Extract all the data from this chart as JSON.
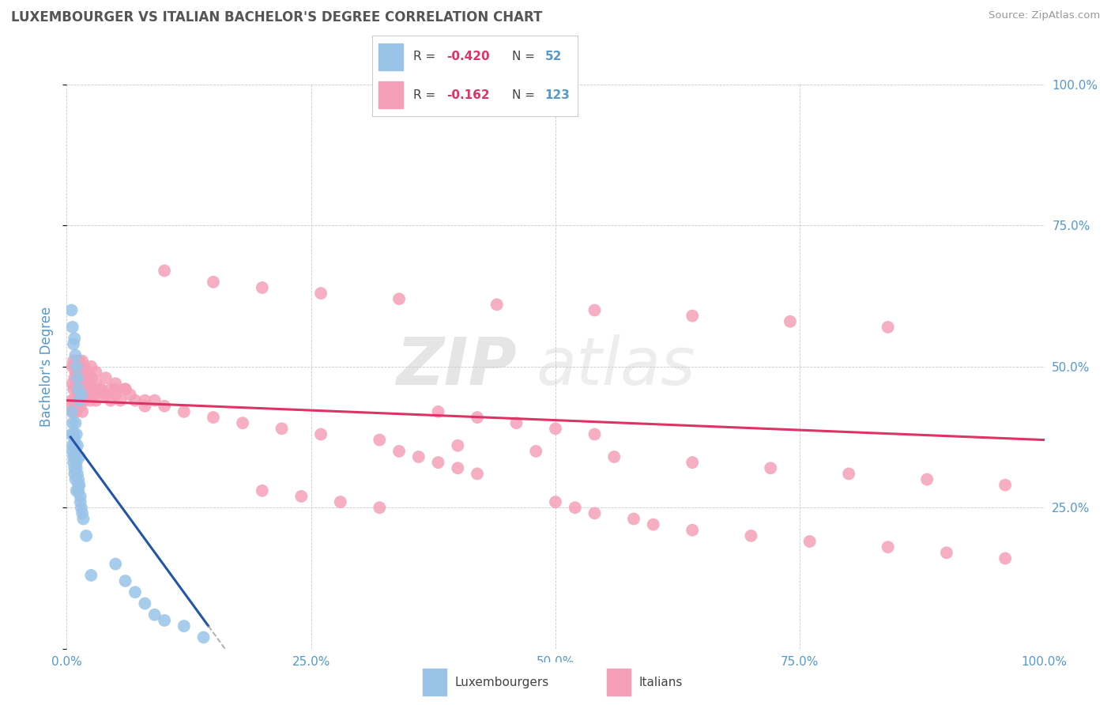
{
  "title": "LUXEMBOURGER VS ITALIAN BACHELOR'S DEGREE CORRELATION CHART",
  "source": "Source: ZipAtlas.com",
  "ylabel": "Bachelor's Degree",
  "xlim": [
    0,
    1.0
  ],
  "ylim": [
    0,
    1.0
  ],
  "xtick_labels": [
    "0.0%",
    "25.0%",
    "50.0%",
    "75.0%",
    "100.0%"
  ],
  "xticks": [
    0.0,
    0.25,
    0.5,
    0.75,
    1.0
  ],
  "yticks_right": [
    0.25,
    0.5,
    0.75,
    1.0
  ],
  "ytick_labels_right": [
    "25.0%",
    "50.0%",
    "75.0%",
    "100.0%"
  ],
  "lux_color": "#99c4e8",
  "ita_color": "#f5a0b8",
  "lux_line_color": "#2255aa",
  "ita_line_color": "#dd3366",
  "axis_color": "#5599cc",
  "grid_color": "#bbbbbb",
  "background_color": "#ffffff",
  "lux_x": [
    0.005,
    0.006,
    0.007,
    0.008,
    0.006,
    0.007,
    0.008,
    0.009,
    0.01,
    0.008,
    0.009,
    0.01,
    0.011,
    0.012,
    0.009,
    0.01,
    0.011,
    0.013,
    0.012,
    0.014,
    0.016,
    0.014,
    0.013,
    0.015,
    0.017,
    0.005,
    0.006,
    0.007,
    0.008,
    0.009,
    0.01,
    0.012,
    0.05,
    0.06,
    0.07,
    0.08,
    0.09,
    0.1,
    0.12,
    0.14,
    0.005,
    0.006,
    0.007,
    0.015,
    0.02,
    0.025,
    0.008,
    0.009,
    0.01,
    0.011,
    0.012,
    0.013
  ],
  "lux_y": [
    0.38,
    0.36,
    0.34,
    0.32,
    0.35,
    0.33,
    0.31,
    0.3,
    0.28,
    0.37,
    0.35,
    0.33,
    0.31,
    0.29,
    0.4,
    0.38,
    0.36,
    0.34,
    0.28,
    0.26,
    0.24,
    0.27,
    0.29,
    0.25,
    0.23,
    0.42,
    0.4,
    0.38,
    0.36,
    0.34,
    0.32,
    0.3,
    0.15,
    0.12,
    0.1,
    0.08,
    0.06,
    0.05,
    0.04,
    0.02,
    0.6,
    0.57,
    0.54,
    0.45,
    0.2,
    0.13,
    0.55,
    0.52,
    0.5,
    0.48,
    0.46,
    0.44
  ],
  "ita_x": [
    0.005,
    0.006,
    0.007,
    0.008,
    0.009,
    0.01,
    0.012,
    0.014,
    0.016,
    0.018,
    0.02,
    0.022,
    0.024,
    0.026,
    0.028,
    0.03,
    0.035,
    0.04,
    0.045,
    0.05,
    0.006,
    0.007,
    0.008,
    0.009,
    0.01,
    0.011,
    0.012,
    0.013,
    0.014,
    0.015,
    0.016,
    0.017,
    0.018,
    0.019,
    0.02,
    0.022,
    0.024,
    0.026,
    0.028,
    0.03,
    0.035,
    0.04,
    0.045,
    0.05,
    0.055,
    0.06,
    0.065,
    0.07,
    0.08,
    0.09,
    0.006,
    0.007,
    0.008,
    0.009,
    0.01,
    0.011,
    0.012,
    0.013,
    0.014,
    0.015,
    0.016,
    0.018,
    0.02,
    0.025,
    0.03,
    0.04,
    0.05,
    0.06,
    0.08,
    0.1,
    0.12,
    0.15,
    0.18,
    0.22,
    0.26,
    0.32,
    0.4,
    0.48,
    0.56,
    0.64,
    0.72,
    0.8,
    0.88,
    0.96,
    0.1,
    0.15,
    0.2,
    0.26,
    0.34,
    0.44,
    0.54,
    0.64,
    0.74,
    0.84,
    0.38,
    0.42,
    0.46,
    0.5,
    0.54,
    0.36,
    0.38,
    0.4,
    0.42,
    0.34,
    0.2,
    0.24,
    0.28,
    0.32,
    0.5,
    0.52,
    0.54,
    0.58,
    0.6,
    0.64,
    0.7,
    0.76,
    0.84,
    0.9,
    0.96
  ],
  "ita_y": [
    0.44,
    0.43,
    0.42,
    0.44,
    0.43,
    0.42,
    0.44,
    0.43,
    0.42,
    0.44,
    0.46,
    0.45,
    0.44,
    0.46,
    0.45,
    0.44,
    0.46,
    0.45,
    0.44,
    0.46,
    0.47,
    0.46,
    0.48,
    0.47,
    0.46,
    0.48,
    0.47,
    0.46,
    0.48,
    0.47,
    0.46,
    0.48,
    0.47,
    0.46,
    0.48,
    0.47,
    0.46,
    0.48,
    0.46,
    0.47,
    0.46,
    0.45,
    0.46,
    0.45,
    0.44,
    0.46,
    0.45,
    0.44,
    0.43,
    0.44,
    0.5,
    0.51,
    0.5,
    0.49,
    0.51,
    0.5,
    0.49,
    0.51,
    0.5,
    0.49,
    0.51,
    0.5,
    0.49,
    0.5,
    0.49,
    0.48,
    0.47,
    0.46,
    0.44,
    0.43,
    0.42,
    0.41,
    0.4,
    0.39,
    0.38,
    0.37,
    0.36,
    0.35,
    0.34,
    0.33,
    0.32,
    0.31,
    0.3,
    0.29,
    0.67,
    0.65,
    0.64,
    0.63,
    0.62,
    0.61,
    0.6,
    0.59,
    0.58,
    0.57,
    0.42,
    0.41,
    0.4,
    0.39,
    0.38,
    0.34,
    0.33,
    0.32,
    0.31,
    0.35,
    0.28,
    0.27,
    0.26,
    0.25,
    0.26,
    0.25,
    0.24,
    0.23,
    0.22,
    0.21,
    0.2,
    0.19,
    0.18,
    0.17,
    0.16
  ]
}
